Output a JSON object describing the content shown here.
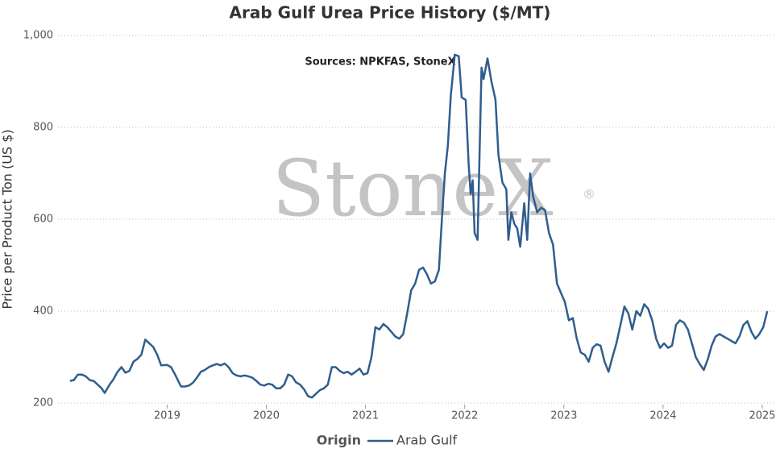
{
  "chart_data": {
    "type": "line",
    "title": "Arab Gulf Urea Price History ($/MT)",
    "annotation": "Sources: NPKFAS, StoneX",
    "watermark": "StoneX",
    "watermark_mark": "®",
    "y_label": "Price per Product Ton (US $)",
    "legend_title": "Origin",
    "legend": "bottom",
    "grid": true,
    "xlim": [
      2017.9,
      2025.13
    ],
    "xticks": [
      2019,
      2020,
      2021,
      2022,
      2023,
      2024,
      2025
    ],
    "ylim": [
      200,
      1000
    ],
    "yticks": [
      200,
      400,
      600,
      800,
      {
        "value": 1000,
        "label": "1,000"
      }
    ],
    "x": [
      2018.02,
      2018.06,
      2018.1,
      2018.14,
      2018.18,
      2018.22,
      2018.26,
      2018.3,
      2018.34,
      2018.37,
      2018.42,
      2018.46,
      2018.5,
      2018.54,
      2018.58,
      2018.62,
      2018.66,
      2018.7,
      2018.74,
      2018.78,
      2018.82,
      2018.86,
      2018.9,
      2018.94,
      2019.0,
      2019.04,
      2019.08,
      2019.14,
      2019.18,
      2019.22,
      2019.26,
      2019.3,
      2019.34,
      2019.38,
      2019.42,
      2019.46,
      2019.5,
      2019.54,
      2019.58,
      2019.62,
      2019.66,
      2019.7,
      2019.74,
      2019.78,
      2019.82,
      2019.86,
      2019.9,
      2019.94,
      2019.98,
      2020.02,
      2020.06,
      2020.1,
      2020.14,
      2020.18,
      2020.22,
      2020.26,
      2020.3,
      2020.34,
      2020.38,
      2020.42,
      2020.46,
      2020.5,
      2020.54,
      2020.58,
      2020.62,
      2020.66,
      2020.7,
      2020.74,
      2020.78,
      2020.82,
      2020.86,
      2020.9,
      2020.94,
      2020.98,
      2021.02,
      2021.06,
      2021.1,
      2021.14,
      2021.18,
      2021.22,
      2021.26,
      2021.3,
      2021.34,
      2021.38,
      2021.42,
      2021.46,
      2021.5,
      2021.54,
      2021.58,
      2021.62,
      2021.66,
      2021.7,
      2021.74,
      2021.77,
      2021.8,
      2021.83,
      2021.86,
      2021.9,
      2021.94,
      2021.97,
      2022.01,
      2022.04,
      2022.06,
      2022.08,
      2022.1,
      2022.13,
      2022.17,
      2022.19,
      2022.23,
      2022.27,
      2022.31,
      2022.34,
      2022.38,
      2022.42,
      2022.44,
      2022.47,
      2022.5,
      2022.53,
      2022.56,
      2022.6,
      2022.63,
      2022.66,
      2022.69,
      2022.73,
      2022.77,
      2022.81,
      2022.85,
      2022.89,
      2022.93,
      2022.97,
      2023.01,
      2023.05,
      2023.09,
      2023.13,
      2023.17,
      2023.21,
      2023.25,
      2023.29,
      2023.33,
      2023.37,
      2023.41,
      2023.45,
      2023.49,
      2023.53,
      2023.57,
      2023.61,
      2023.65,
      2023.69,
      2023.73,
      2023.77,
      2023.81,
      2023.85,
      2023.89,
      2023.93,
      2023.97,
      2024.01,
      2024.05,
      2024.09,
      2024.13,
      2024.17,
      2024.21,
      2024.25,
      2024.29,
      2024.33,
      2024.37,
      2024.41,
      2024.45,
      2024.49,
      2024.53,
      2024.57,
      2024.61,
      2024.65,
      2024.69,
      2024.73,
      2024.77,
      2024.81,
      2024.85,
      2024.89,
      2024.93,
      2024.97,
      2025.01,
      2025.05
    ],
    "series": [
      {
        "name": "Arab Gulf",
        "color": "#305d8e",
        "values": [
          248,
          250,
          262,
          262,
          258,
          250,
          248,
          240,
          232,
          222,
          240,
          252,
          268,
          278,
          266,
          270,
          290,
          296,
          305,
          338,
          330,
          322,
          305,
          282,
          283,
          278,
          262,
          236,
          236,
          238,
          244,
          255,
          268,
          272,
          278,
          282,
          285,
          282,
          286,
          278,
          265,
          260,
          258,
          260,
          258,
          255,
          248,
          240,
          238,
          242,
          240,
          232,
          232,
          240,
          262,
          258,
          245,
          240,
          230,
          215,
          212,
          220,
          228,
          232,
          240,
          278,
          278,
          270,
          265,
          268,
          262,
          268,
          275,
          262,
          265,
          300,
          365,
          360,
          372,
          365,
          355,
          345,
          340,
          350,
          395,
          445,
          460,
          490,
          495,
          480,
          460,
          465,
          490,
          600,
          700,
          760,
          870,
          958,
          955,
          865,
          860,
          720,
          655,
          685,
          570,
          555,
          930,
          905,
          950,
          900,
          860,
          740,
          680,
          665,
          555,
          615,
          590,
          580,
          540,
          635,
          555,
          700,
          650,
          615,
          625,
          620,
          570,
          545,
          460,
          440,
          420,
          380,
          385,
          340,
          310,
          305,
          290,
          320,
          328,
          325,
          290,
          268,
          300,
          330,
          370,
          410,
          395,
          360,
          400,
          390,
          415,
          405,
          380,
          340,
          320,
          330,
          320,
          325,
          370,
          380,
          375,
          360,
          330,
          300,
          285,
          272,
          295,
          325,
          345,
          350,
          345,
          340,
          335,
          330,
          345,
          370,
          378,
          355,
          340,
          350,
          365,
          400
        ]
      }
    ]
  }
}
